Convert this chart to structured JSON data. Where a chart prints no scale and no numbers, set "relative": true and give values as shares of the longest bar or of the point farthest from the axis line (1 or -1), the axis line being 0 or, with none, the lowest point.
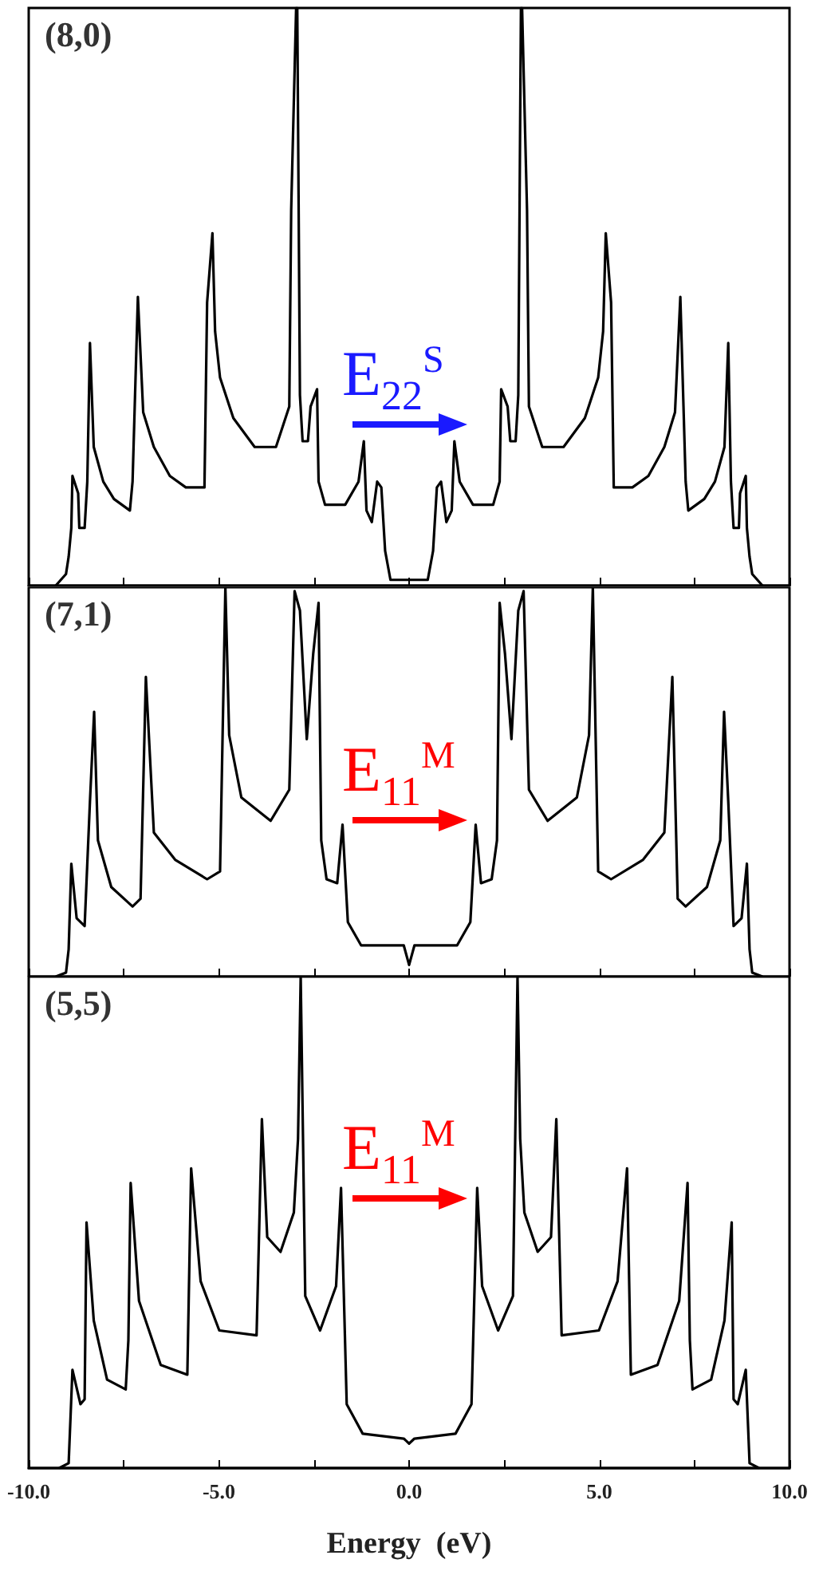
{
  "chart_data": [
    {
      "type": "line",
      "relative": true,
      "color": "#000000",
      "xlim": [
        -10,
        10
      ],
      "tick_labels": false,
      "xticks": [
        {
          "value": -10,
          "label": null
        },
        {
          "value": -7.5,
          "label": null
        },
        {
          "value": -5,
          "label": null
        },
        {
          "value": -2.5,
          "label": null
        },
        {
          "value": 0,
          "label": null
        },
        {
          "value": 2.5,
          "label": null
        },
        {
          "value": 5,
          "label": null
        },
        {
          "value": 7.5,
          "label": null
        },
        {
          "value": 10,
          "label": null
        }
      ],
      "annotations": [
        "(8,0)",
        "E$_{22}$$^{S}$"
      ],
      "x": [
        -9.29,
        -9.02,
        -8.95,
        -8.88,
        -8.85,
        -8.7,
        -8.67,
        -8.53,
        -8.46,
        -8.39,
        -8.29,
        -8.04,
        -7.76,
        -7.34,
        -7.27,
        -7.13,
        -6.99,
        -6.71,
        -6.29,
        -5.87,
        -5.38,
        -5.31,
        -5.17,
        -5.1,
        -4.97,
        -4.62,
        -4.06,
        -3.5,
        -3.15,
        -3.1,
        -2.97,
        -2.94,
        -2.87,
        -2.8,
        -2.66,
        -2.59,
        -2.42,
        -2.38,
        -2.21,
        -1.68,
        -1.33,
        -1.19,
        -1.12,
        -0.98,
        -0.84,
        -0.73,
        -0.63,
        -0.49,
        0,
        0.49,
        0.63,
        0.73,
        0.84,
        0.98,
        1.12,
        1.19,
        1.33,
        1.68,
        2.21,
        2.38,
        2.42,
        2.59,
        2.66,
        2.8,
        2.87,
        2.94,
        2.97,
        3.1,
        3.15,
        3.5,
        4.06,
        4.62,
        4.97,
        5.1,
        5.17,
        5.31,
        5.38,
        5.87,
        6.29,
        6.71,
        6.99,
        7.13,
        7.27,
        7.34,
        7.76,
        8.04,
        8.29,
        8.39,
        8.46,
        8.53,
        8.67,
        8.7,
        8.85,
        8.88,
        8.95,
        9.02,
        9.29
      ],
      "values": [
        0,
        0.02,
        0.05,
        0.1,
        0.19,
        0.16,
        0.1,
        0.1,
        0.18,
        0.42,
        0.24,
        0.18,
        0.15,
        0.13,
        0.18,
        0.5,
        0.3,
        0.24,
        0.19,
        0.17,
        0.17,
        0.49,
        0.61,
        0.44,
        0.36,
        0.29,
        0.24,
        0.24,
        0.31,
        0.65,
        1,
        1,
        0.33,
        0.25,
        0.25,
        0.31,
        0.34,
        0.18,
        0.14,
        0.14,
        0.18,
        0.25,
        0.13,
        0.11,
        0.18,
        0.17,
        0.06,
        0.01,
        0.01,
        0.01,
        0.06,
        0.17,
        0.18,
        0.11,
        0.13,
        0.25,
        0.18,
        0.14,
        0.14,
        0.18,
        0.34,
        0.31,
        0.25,
        0.25,
        0.33,
        1,
        1,
        0.65,
        0.31,
        0.24,
        0.24,
        0.29,
        0.36,
        0.44,
        0.61,
        0.49,
        0.17,
        0.17,
        0.19,
        0.24,
        0.3,
        0.5,
        0.18,
        0.13,
        0.15,
        0.18,
        0.24,
        0.42,
        0.18,
        0.1,
        0.1,
        0.16,
        0.19,
        0.1,
        0.05,
        0.02,
        0
      ]
    },
    {
      "type": "line",
      "relative": true,
      "color": "#000000",
      "xlim": [
        -10,
        10
      ],
      "tick_labels": false,
      "xticks": [
        {
          "value": -10,
          "label": null
        },
        {
          "value": -7.5,
          "label": null
        },
        {
          "value": -5,
          "label": null
        },
        {
          "value": -2.5,
          "label": null
        },
        {
          "value": 0,
          "label": null
        },
        {
          "value": 2.5,
          "label": null
        },
        {
          "value": 5,
          "label": null
        },
        {
          "value": 7.5,
          "label": null
        },
        {
          "value": 10,
          "label": null
        }
      ],
      "annotations": [
        "(7,1)",
        "E$_{11}$$^{M}$"
      ],
      "x": [
        -9.29,
        -9.02,
        -8.95,
        -8.88,
        -8.74,
        -8.53,
        -8.39,
        -8.28,
        -8.18,
        -7.83,
        -7.27,
        -7.06,
        -6.92,
        -6.71,
        -6.15,
        -5.31,
        -4.97,
        -4.83,
        -4.73,
        -4.41,
        -3.64,
        -3.15,
        -3.01,
        -2.87,
        -2.69,
        -2.52,
        -2.38,
        -2.31,
        -2.17,
        -1.89,
        -1.75,
        -1.61,
        -1.26,
        -0.14,
        0,
        0.14,
        1.26,
        1.61,
        1.75,
        1.89,
        2.17,
        2.31,
        2.38,
        2.52,
        2.69,
        2.87,
        3.01,
        3.15,
        3.64,
        4.41,
        4.73,
        4.83,
        4.97,
        5.31,
        6.15,
        6.71,
        6.92,
        7.06,
        7.27,
        7.83,
        8.18,
        8.28,
        8.39,
        8.53,
        8.74,
        8.88,
        8.95,
        9.02,
        9.29
      ],
      "values": [
        0,
        0.01,
        0.07,
        0.29,
        0.15,
        0.13,
        0.45,
        0.68,
        0.35,
        0.23,
        0.18,
        0.2,
        0.77,
        0.37,
        0.3,
        0.25,
        0.27,
        1,
        0.62,
        0.46,
        0.4,
        0.48,
        0.99,
        0.94,
        0.61,
        0.83,
        0.96,
        0.35,
        0.25,
        0.24,
        0.39,
        0.14,
        0.08,
        0.08,
        0.03,
        0.08,
        0.08,
        0.14,
        0.39,
        0.24,
        0.25,
        0.35,
        0.96,
        0.83,
        0.61,
        0.94,
        0.99,
        0.48,
        0.4,
        0.46,
        0.62,
        1,
        0.27,
        0.25,
        0.3,
        0.37,
        0.77,
        0.2,
        0.18,
        0.23,
        0.35,
        0.68,
        0.45,
        0.13,
        0.15,
        0.29,
        0.07,
        0.01,
        0
      ]
    },
    {
      "type": "line",
      "relative": true,
      "color": "#000000",
      "xlim": [
        -10,
        10
      ],
      "tick_labels": "x",
      "xlabel": "Energy  (eV)",
      "xticks": [
        {
          "value": -10,
          "label": "-10.0"
        },
        {
          "value": -7.5,
          "label": null
        },
        {
          "value": -5,
          "label": "-5.0"
        },
        {
          "value": -2.5,
          "label": null
        },
        {
          "value": 0,
          "label": "0.0"
        },
        {
          "value": 2.5,
          "label": null
        },
        {
          "value": 5,
          "label": "5.0"
        },
        {
          "value": 7.5,
          "label": null
        },
        {
          "value": 10,
          "label": "10.0"
        }
      ],
      "annotations": [
        "(5,5)",
        "E$_{11}$$^{M}$"
      ],
      "x": [
        -9.2,
        -8.95,
        -8.85,
        -8.64,
        -8.53,
        -8.48,
        -8.29,
        -7.94,
        -7.45,
        -7.38,
        -7.32,
        -7.1,
        -6.53,
        -5.83,
        -5.73,
        -5.48,
        -4.99,
        -4.01,
        -3.87,
        -3.73,
        -3.38,
        -3.03,
        -2.92,
        -2.85,
        -2.73,
        -2.34,
        -1.92,
        -1.79,
        -1.64,
        -1.22,
        -0.14,
        0,
        0.14,
        1.22,
        1.64,
        1.79,
        1.92,
        2.34,
        2.73,
        2.85,
        2.92,
        3.03,
        3.38,
        3.73,
        3.87,
        4.01,
        4.99,
        5.48,
        5.73,
        5.83,
        6.53,
        7.1,
        7.32,
        7.38,
        7.45,
        7.94,
        8.29,
        8.48,
        8.53,
        8.64,
        8.85,
        8.95,
        9.2
      ],
      "values": [
        0,
        0.01,
        0.2,
        0.13,
        0.14,
        0.5,
        0.3,
        0.18,
        0.16,
        0.26,
        0.58,
        0.34,
        0.21,
        0.19,
        0.61,
        0.38,
        0.28,
        0.27,
        0.71,
        0.47,
        0.44,
        0.52,
        0.67,
        1,
        0.35,
        0.28,
        0.37,
        0.57,
        0.13,
        0.07,
        0.06,
        0.05,
        0.06,
        0.07,
        0.13,
        0.57,
        0.37,
        0.28,
        0.35,
        1,
        0.67,
        0.52,
        0.44,
        0.47,
        0.71,
        0.27,
        0.28,
        0.38,
        0.61,
        0.19,
        0.21,
        0.34,
        0.58,
        0.26,
        0.16,
        0.18,
        0.3,
        0.5,
        0.14,
        0.13,
        0.2,
        0.01,
        0
      ]
    }
  ]
}
